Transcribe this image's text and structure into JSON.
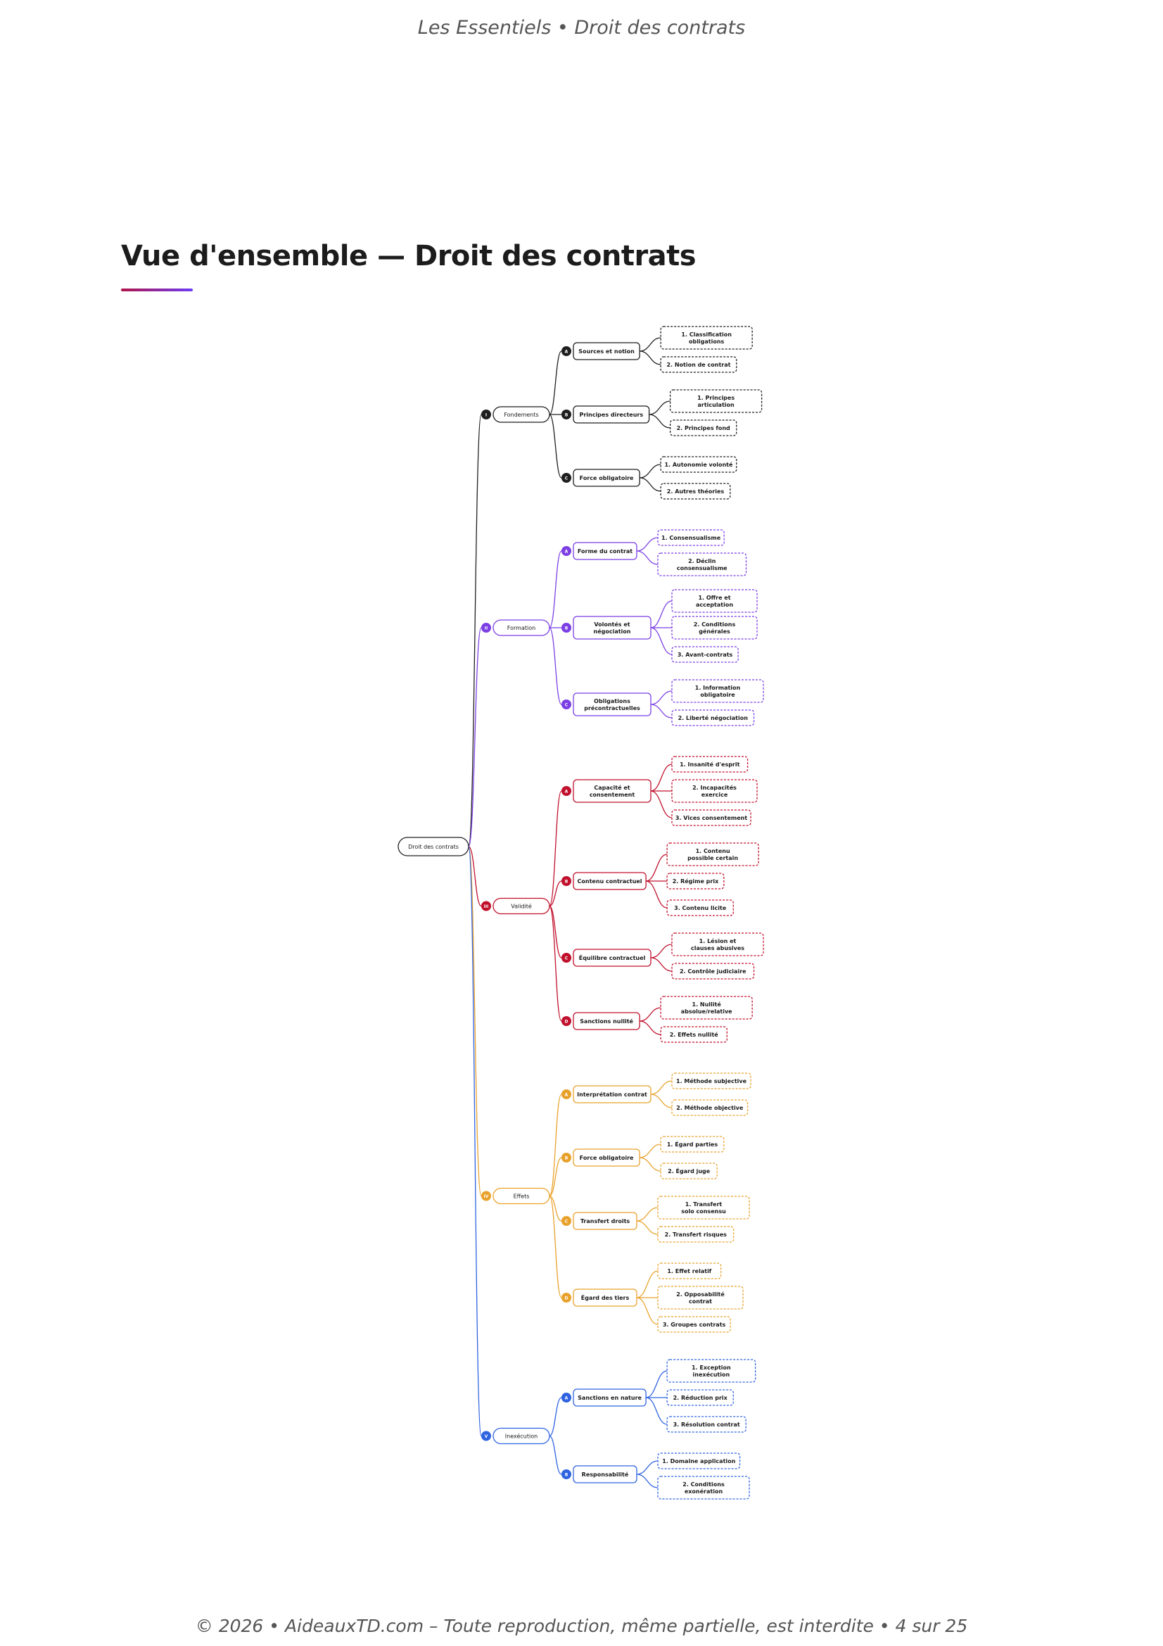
{
  "header": {
    "text": "Les Essentiels • Droit des contrats"
  },
  "title": "Vue d'ensemble — Droit des contrats",
  "footer": {
    "text": "© 2026 • AideauxTD.com – Toute reproduction, même partielle, est interdite • 4 sur 25"
  },
  "mindmap": {
    "root": "Droit des contrats",
    "root_color": "#222222",
    "parts": [
      {
        "marker": "I",
        "label": "Fondements",
        "color": "#1f1f1f",
        "sections": [
          {
            "marker": "A",
            "label": "Sources et notion",
            "items": [
              "1. Classification obligations",
              "2. Notion de contrat"
            ]
          },
          {
            "marker": "B",
            "label": "Principes directeurs",
            "items": [
              "1. Principes articulation",
              "2. Principes fond"
            ]
          },
          {
            "marker": "C",
            "label": "Force obligatoire",
            "items": [
              "1. Autonomie volonté",
              "2. Autres théories"
            ]
          }
        ]
      },
      {
        "marker": "II",
        "label": "Formation",
        "color": "#7b3fe4",
        "sections": [
          {
            "marker": "A",
            "label": "Forme du contrat",
            "items": [
              "1. Consensualisme",
              "2. Déclin consensualisme"
            ]
          },
          {
            "marker": "B",
            "label": "Volontés et négociation",
            "items": [
              "1. Offre et acceptation",
              "2. Conditions générales",
              "3. Avant-contrats"
            ]
          },
          {
            "marker": "C",
            "label": "Obligations précontractuelles",
            "items": [
              "1. Information obligatoire",
              "2. Liberté négociation"
            ]
          }
        ]
      },
      {
        "marker": "III",
        "label": "Validité",
        "color": "#c0102c",
        "sections": [
          {
            "marker": "A",
            "label": "Capacité et consentement",
            "items": [
              "1. Insanité d'esprit",
              "2. Incapacités exercice",
              "3. Vices consentement"
            ]
          },
          {
            "marker": "B",
            "label": "Contenu contractuel",
            "items": [
              "1. Contenu possible certain",
              "2. Régime prix",
              "3. Contenu licite"
            ]
          },
          {
            "marker": "C",
            "label": "Équilibre contractuel",
            "items": [
              "1. Lésion et clauses abusives",
              "2. Contrôle judiciaire"
            ]
          },
          {
            "marker": "D",
            "label": "Sanctions nullité",
            "items": [
              "1. Nullité absolue/relative",
              "2. Effets nullité"
            ]
          }
        ]
      },
      {
        "marker": "IV",
        "label": "Effets",
        "color": "#e8a22c",
        "sections": [
          {
            "marker": "A",
            "label": "Interprétation contrat",
            "items": [
              "1. Méthode subjective",
              "2. Méthode objective"
            ]
          },
          {
            "marker": "B",
            "label": "Force obligatoire",
            "items": [
              "1. Égard parties",
              "2. Égard juge"
            ]
          },
          {
            "marker": "C",
            "label": "Transfert droits",
            "items": [
              "1. Transfert solo consensu",
              "2. Transfert risques"
            ]
          },
          {
            "marker": "D",
            "label": "Égard des tiers",
            "items": [
              "1. Effet relatif",
              "2. Opposabilité contrat",
              "3. Groupes contrats"
            ]
          }
        ]
      },
      {
        "marker": "V",
        "label": "Inexécution",
        "color": "#2f63e0",
        "sections": [
          {
            "marker": "A",
            "label": "Sanctions en nature",
            "items": [
              "1. Exception inexécution",
              "2. Réduction prix",
              "3. Résolution contrat"
            ]
          },
          {
            "marker": "B",
            "label": "Responsabilité",
            "items": [
              "1. Domaine application",
              "2. Conditions exonération"
            ]
          }
        ]
      }
    ]
  }
}
